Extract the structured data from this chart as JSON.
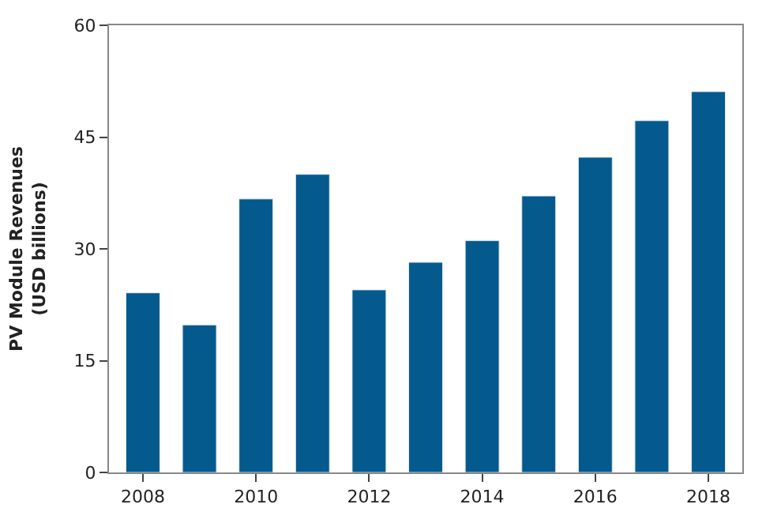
{
  "chart_data": {
    "type": "bar",
    "ylabel": "PV Module Revenues\n(USD billions)",
    "categories": [
      "2008",
      null,
      "2010",
      null,
      "2012",
      null,
      "2014",
      null,
      "2016",
      null,
      "2018"
    ],
    "values": [
      24.1,
      19.8,
      36.7,
      40.0,
      24.5,
      28.2,
      31.1,
      37.1,
      42.3,
      47.2,
      51.1
    ],
    "color": "#045a8d",
    "ylim": [
      0,
      60
    ],
    "yticks": [
      0,
      15,
      30,
      45,
      60
    ]
  }
}
